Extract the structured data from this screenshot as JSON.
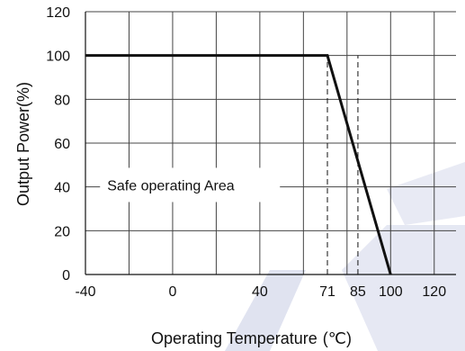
{
  "chart_data": {
    "type": "line",
    "xlabel": "Operating Temperature",
    "xunit": "(℃)",
    "ylabel": "Output Power(%)",
    "xlim": [
      -40,
      130
    ],
    "ylim": [
      0,
      120
    ],
    "x_ticks": [
      -40,
      0,
      40,
      71,
      85,
      100,
      120
    ],
    "y_ticks": [
      0,
      20,
      40,
      60,
      80,
      100,
      120
    ],
    "grid": true,
    "series": [
      {
        "x": [
          -40,
          71,
          100
        ],
        "y": [
          100,
          100,
          0
        ]
      }
    ],
    "reference_lines": [
      71,
      85
    ],
    "annotations": [
      {
        "text": "Safe operating Area",
        "x": -30,
        "y": 52
      }
    ],
    "colors": {
      "line": "#111111",
      "grid": "#444444",
      "watermark": "#dde0ef"
    }
  }
}
